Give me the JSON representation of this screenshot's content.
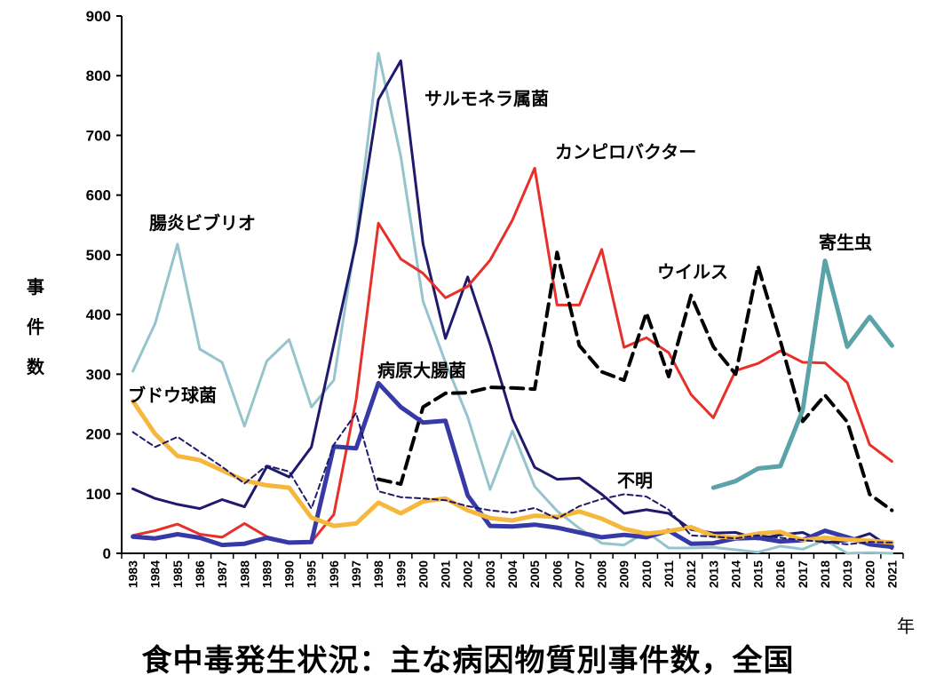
{
  "chart_data": {
    "type": "line",
    "title": "食中毒発生状況：主な病因物質別事件数，全国",
    "ylabel": "事件数",
    "xunit": "年",
    "ylim": [
      0,
      900
    ],
    "yticks": [
      0,
      100,
      200,
      300,
      400,
      500,
      600,
      700,
      800,
      900
    ],
    "grid": false,
    "categories": [
      "1983",
      "1984",
      "1985",
      "1986",
      "1987",
      "1988",
      "1989",
      "1990",
      "1995",
      "1996",
      "1997",
      "1998",
      "1999",
      "2000",
      "2001",
      "2002",
      "2003",
      "2004",
      "2005",
      "2006",
      "2007",
      "2008",
      "2009",
      "2010",
      "2011",
      "2012",
      "2013",
      "2014",
      "2015",
      "2016",
      "2017",
      "2018",
      "2019",
      "2020",
      "2021"
    ],
    "series": [
      {
        "name": "腸炎ビブリオ",
        "color": "#95c4cc",
        "dash": false,
        "width": 3,
        "values": [
          305,
          385,
          518,
          342,
          320,
          213,
          322,
          358,
          245,
          290,
          530,
          838,
          665,
          422,
          320,
          228,
          107,
          205,
          112,
          71,
          42,
          17,
          14,
          36,
          9,
          9,
          10,
          6,
          2,
          12,
          7,
          22,
          0,
          1,
          0
        ]
      },
      {
        "name": "サルモネラ属菌",
        "color": "#1f1a6b",
        "dash": false,
        "width": 3,
        "values": [
          108,
          92,
          82,
          75,
          90,
          78,
          145,
          128,
          178,
          350,
          520,
          760,
          825,
          518,
          360,
          463,
          350,
          225,
          144,
          124,
          126,
          99,
          67,
          73,
          67,
          40,
          34,
          35,
          24,
          31,
          35,
          18,
          21,
          33,
          8
        ]
      },
      {
        "name": "カンピロバクター",
        "color": "#e8302b",
        "dash": false,
        "width": 3,
        "values": [
          30,
          38,
          49,
          32,
          27,
          50,
          28,
          18,
          19,
          65,
          257,
          553,
          493,
          469,
          428,
          447,
          491,
          558,
          645,
          416,
          416,
          509,
          345,
          361,
          336,
          266,
          227,
          306,
          318,
          339,
          320,
          319,
          286,
          182,
          154
        ]
      },
      {
        "name": "ウイルス",
        "color": "#000000",
        "dash": true,
        "width": 4,
        "values": [
          null,
          null,
          null,
          null,
          null,
          null,
          null,
          null,
          null,
          null,
          null,
          124,
          116,
          245,
          268,
          269,
          278,
          277,
          275,
          504,
          348,
          304,
          290,
          403,
          296,
          432,
          346,
          300,
          481,
          356,
          221,
          265,
          220,
          99,
          72
        ]
      },
      {
        "name": "病原大腸菌",
        "color": "#373aa6",
        "dash": false,
        "width": 5,
        "values": [
          28,
          25,
          32,
          26,
          14,
          16,
          26,
          18,
          19,
          179,
          176,
          285,
          245,
          219,
          222,
          97,
          46,
          45,
          48,
          43,
          35,
          27,
          31,
          27,
          38,
          16,
          17,
          25,
          26,
          20,
          22,
          38,
          27,
          15,
          11
        ]
      },
      {
        "name": "ブドウ球菌",
        "color": "#f5b83d",
        "dash": false,
        "width": 5,
        "values": [
          255,
          200,
          163,
          156,
          139,
          122,
          114,
          110,
          60,
          46,
          50,
          85,
          67,
          87,
          92,
          72,
          59,
          55,
          63,
          61,
          70,
          58,
          41,
          33,
          37,
          44,
          29,
          26,
          33,
          36,
          22,
          26,
          23,
          21,
          18
        ]
      },
      {
        "name": "不明",
        "color": "#1f1a6b",
        "dash": true,
        "width": 2,
        "values": [
          203,
          178,
          195,
          170,
          145,
          117,
          147,
          137,
          75,
          182,
          235,
          104,
          94,
          92,
          89,
          79,
          72,
          68,
          76,
          58,
          79,
          91,
          99,
          95,
          73,
          30,
          28,
          25,
          30,
          26,
          22,
          19,
          15,
          19,
          18
        ]
      },
      {
        "name": "寄生虫",
        "color": "#5aa3a8",
        "dash": false,
        "width": 5,
        "values": [
          null,
          null,
          null,
          null,
          null,
          null,
          null,
          null,
          null,
          null,
          null,
          null,
          null,
          null,
          null,
          null,
          null,
          null,
          null,
          null,
          null,
          null,
          null,
          null,
          null,
          null,
          110,
          121,
          142,
          146,
          240,
          490,
          346,
          396,
          348
        ]
      }
    ]
  }
}
